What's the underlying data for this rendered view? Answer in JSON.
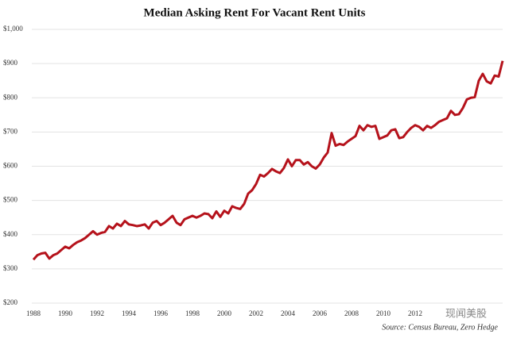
{
  "chart_data": {
    "type": "line",
    "title": "Median Asking Rent For Vacant Rent Units",
    "source": "Source: Census Bureau, Zero Hedge",
    "watermark": "现闻美股",
    "x": [
      1988,
      1988.25,
      1988.5,
      1988.75,
      1989,
      1989.25,
      1989.5,
      1989.75,
      1990,
      1990.25,
      1990.5,
      1990.75,
      1991,
      1991.25,
      1991.5,
      1991.75,
      1992,
      1992.25,
      1992.5,
      1992.75,
      1993,
      1993.25,
      1993.5,
      1993.75,
      1994,
      1994.25,
      1994.5,
      1994.75,
      1995,
      1995.25,
      1995.5,
      1995.75,
      1996,
      1996.25,
      1996.5,
      1996.75,
      1997,
      1997.25,
      1997.5,
      1997.75,
      1998,
      1998.25,
      1998.5,
      1998.75,
      1999,
      1999.25,
      1999.5,
      1999.75,
      2000,
      2000.25,
      2000.5,
      2000.75,
      2001,
      2001.25,
      2001.5,
      2001.75,
      2002,
      2002.25,
      2002.5,
      2002.75,
      2003,
      2003.25,
      2003.5,
      2003.75,
      2004,
      2004.25,
      2004.5,
      2004.75,
      2005,
      2005.25,
      2005.5,
      2005.75,
      2006,
      2006.25,
      2006.5,
      2006.75,
      2007,
      2007.25,
      2007.5,
      2007.75,
      2008,
      2008.25,
      2008.5,
      2008.75,
      2009,
      2009.25,
      2009.5,
      2009.75,
      2010,
      2010.25,
      2010.5,
      2010.75,
      2011,
      2011.25,
      2011.5,
      2011.75,
      2012,
      2012.25,
      2012.5,
      2012.75,
      2013,
      2013.25,
      2013.5,
      2013.75,
      2014,
      2014.25,
      2014.5,
      2014.75,
      2015,
      2015.25,
      2015.5,
      2015.75,
      2016,
      2016.25,
      2016.5,
      2016.75,
      2017,
      2017.25,
      2017.5
    ],
    "series": [
      {
        "name": "Median Asking Rent",
        "color": "#b5121b",
        "values": [
          327,
          340,
          345,
          347,
          330,
          340,
          345,
          355,
          365,
          360,
          370,
          378,
          383,
          390,
          400,
          410,
          400,
          405,
          408,
          425,
          418,
          432,
          425,
          440,
          430,
          428,
          425,
          427,
          430,
          418,
          435,
          440,
          428,
          435,
          445,
          455,
          435,
          428,
          445,
          450,
          455,
          450,
          455,
          462,
          460,
          448,
          468,
          452,
          470,
          462,
          483,
          478,
          475,
          490,
          520,
          530,
          548,
          575,
          570,
          580,
          592,
          585,
          580,
          595,
          620,
          600,
          618,
          618,
          605,
          612,
          600,
          593,
          605,
          625,
          640,
          697,
          660,
          665,
          662,
          672,
          680,
          688,
          718,
          705,
          720,
          715,
          718,
          680,
          685,
          690,
          705,
          708,
          682,
          685,
          700,
          712,
          720,
          715,
          705,
          718,
          712,
          720,
          730,
          735,
          740,
          762,
          750,
          752,
          770,
          795,
          800,
          802,
          850,
          870,
          848,
          842,
          865,
          862,
          908
        ]
      }
    ],
    "xlim": [
      1987.9,
      2017.7
    ],
    "xticks": [
      1988,
      1990,
      1992,
      1994,
      1996,
      1998,
      2000,
      2002,
      2004,
      2006,
      2008,
      2010,
      2012
    ],
    "ylim": [
      200,
      1000
    ],
    "yticks": [
      {
        "value": 200,
        "label": "$200"
      },
      {
        "value": 300,
        "label": "$300"
      },
      {
        "value": 400,
        "label": "$400"
      },
      {
        "value": 500,
        "label": "$500"
      },
      {
        "value": 600,
        "label": "$600"
      },
      {
        "value": 700,
        "label": "$700"
      },
      {
        "value": 800,
        "label": "$800"
      },
      {
        "value": 900,
        "label": "$900"
      },
      {
        "value": 1000,
        "label": "$1,000"
      }
    ],
    "grid": true
  }
}
